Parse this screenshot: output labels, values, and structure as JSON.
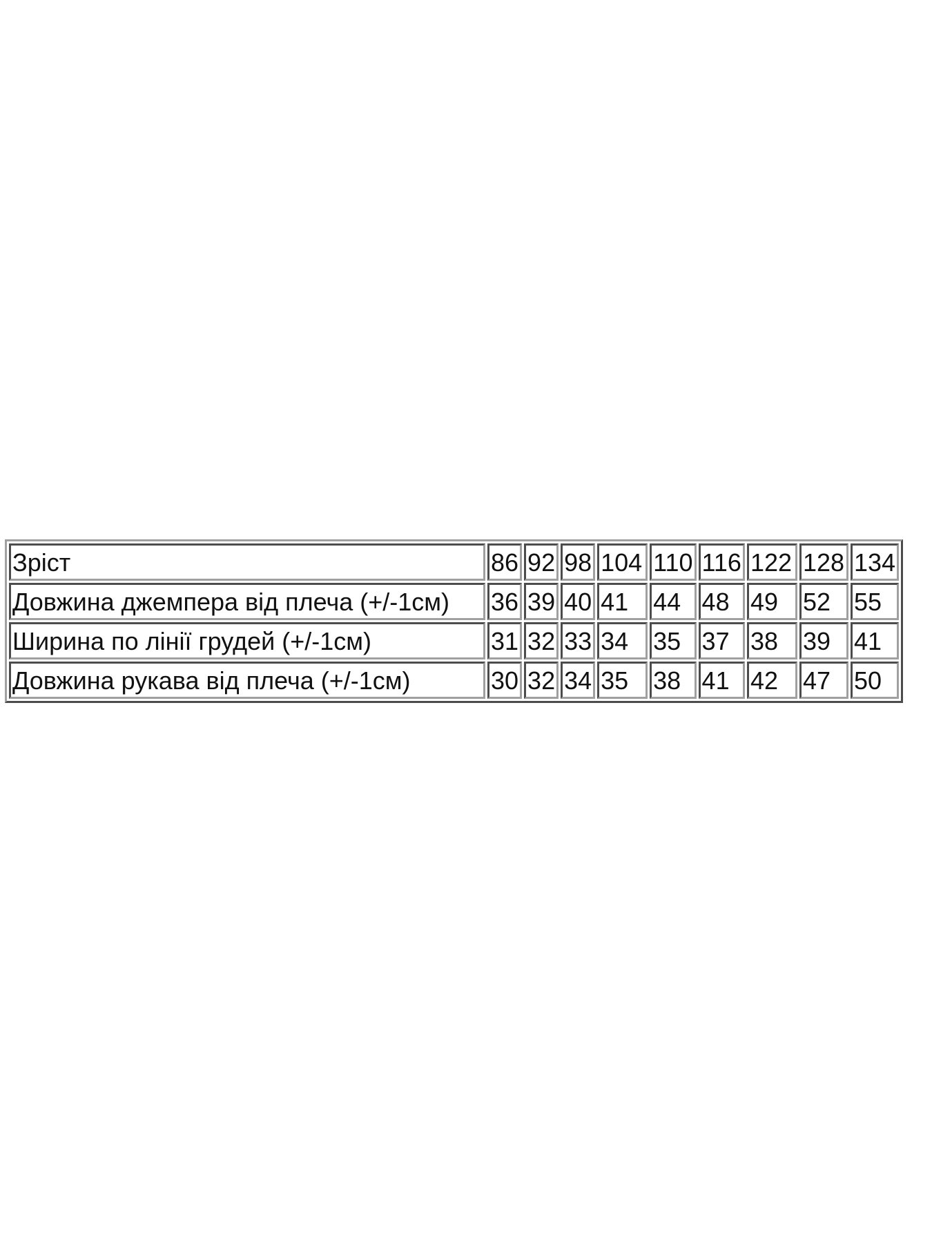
{
  "table": {
    "rows": [
      {
        "label": "Зріст",
        "values": [
          "86",
          "92",
          "98",
          "104",
          "110",
          "116",
          "122",
          "128",
          "134"
        ]
      },
      {
        "label": "Довжина джемпера від плеча (+/-1см)",
        "values": [
          "36",
          "39",
          "40",
          "41",
          "44",
          "48",
          "49",
          "52",
          "55"
        ]
      },
      {
        "label": "Ширина по лінії грудей (+/-1см)",
        "values": [
          "31",
          "32",
          "33",
          "34",
          "35",
          "37",
          "38",
          "39",
          "41"
        ]
      },
      {
        "label": "Довжина рукава від плеча (+/-1см)",
        "values": [
          "30",
          "32",
          "34",
          "35",
          "38",
          "41",
          "42",
          "47",
          "50"
        ]
      }
    ]
  }
}
